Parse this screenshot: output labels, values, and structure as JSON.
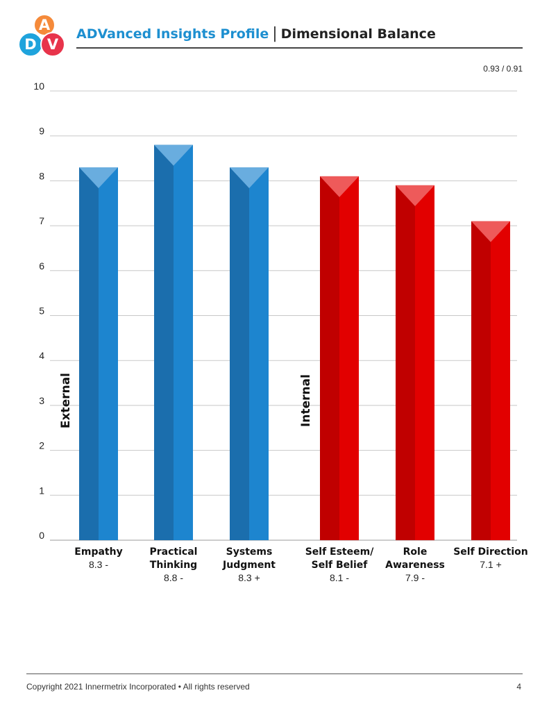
{
  "logo": {
    "letters": [
      "A",
      "D",
      "V"
    ],
    "colors": [
      "#f58a3a",
      "#1fa3dc",
      "#e8344b"
    ]
  },
  "header": {
    "title": "ADVanced Insights Profile",
    "separator": "|",
    "subtitle": "Dimensional Balance"
  },
  "scores": "0.93 / 0.91",
  "chart_data": {
    "type": "bar",
    "ylim": [
      0,
      10
    ],
    "yticks": [
      0,
      1,
      2,
      3,
      4,
      5,
      6,
      7,
      8,
      9,
      10
    ],
    "grid": true,
    "groups": [
      {
        "name": "External",
        "color": "#1d85cf",
        "shade": "#1b6ead",
        "cap": "#69addf",
        "bars": [
          {
            "label": [
              "Empathy"
            ],
            "value": 8.3,
            "score_text": "8.3 -"
          },
          {
            "label": [
              "Practical",
              "Thinking"
            ],
            "value": 8.8,
            "score_text": "8.8 -"
          },
          {
            "label": [
              "Systems",
              "Judgment"
            ],
            "value": 8.3,
            "score_text": "8.3 +"
          }
        ]
      },
      {
        "name": "Internal",
        "color": "#e20000",
        "shade": "#c00000",
        "cap": "#ee5a5a",
        "bars": [
          {
            "label": [
              "Self Esteem/",
              "Self Belief"
            ],
            "value": 8.1,
            "score_text": "8.1 -"
          },
          {
            "label": [
              "Role",
              "Awareness"
            ],
            "value": 7.9,
            "score_text": "7.9 -"
          },
          {
            "label": [
              "Self Direction"
            ],
            "value": 7.1,
            "score_text": "7.1 +"
          }
        ]
      }
    ]
  },
  "footer": {
    "copyright": "Copyright 2021 Innermetrix Incorporated • All rights reserved",
    "page_number": "4"
  }
}
